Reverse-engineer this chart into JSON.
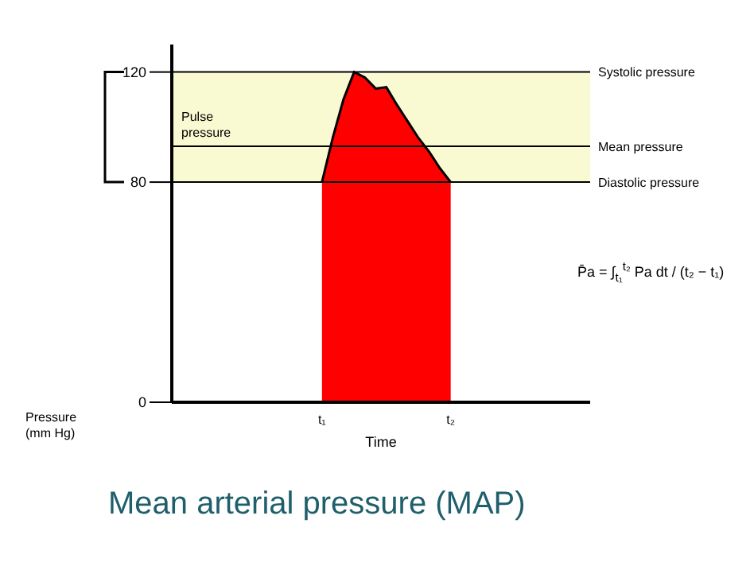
{
  "chart_data": {
    "type": "area",
    "title": "Mean arterial pressure (MAP)",
    "xlabel": "Time",
    "ylabel": "Pressure (mm Hg)",
    "categories": [
      null,
      null,
      null,
      null,
      null,
      null,
      null,
      null,
      null,
      null,
      null,
      null,
      null,
      null,
      "t₁",
      null,
      null,
      null,
      null,
      null,
      null,
      null,
      null,
      null,
      null,
      null,
      "t₂",
      null,
      null,
      null,
      null,
      null,
      null,
      null,
      null,
      null,
      null,
      null,
      null,
      null
    ],
    "series": [
      {
        "color": "#ff0000",
        "values": [
          null,
          null,
          null,
          null,
          null,
          null,
          null,
          null,
          null,
          null,
          null,
          null,
          null,
          null,
          80,
          96,
          110,
          120,
          118,
          114,
          114.5,
          108,
          102,
          96,
          91,
          85,
          80,
          null,
          null,
          null,
          null,
          null,
          null,
          null,
          null,
          null,
          null,
          null,
          null,
          null
        ]
      }
    ],
    "ylim": [
      0,
      130
    ],
    "yticks": [
      0,
      80,
      120
    ],
    "ref_lines": [
      {
        "axis": "y",
        "value": 120,
        "label": "Systolic pressure",
        "color": "#000000"
      },
      {
        "axis": "y",
        "value": 93,
        "label": "Mean pressure",
        "color": "#000000"
      },
      {
        "axis": "y",
        "value": 80,
        "label": "Diastolic pressure",
        "color": "#000000"
      }
    ],
    "bands": [
      {
        "axis": "y",
        "from": 80,
        "to": 120,
        "label": "Pulse pressure",
        "color": "#fafad2"
      }
    ],
    "annotations": [
      "P̄a = ∫$_{t₁}$$^{t₂}$ Pa dt / (t₂ − t₁)"
    ]
  }
}
